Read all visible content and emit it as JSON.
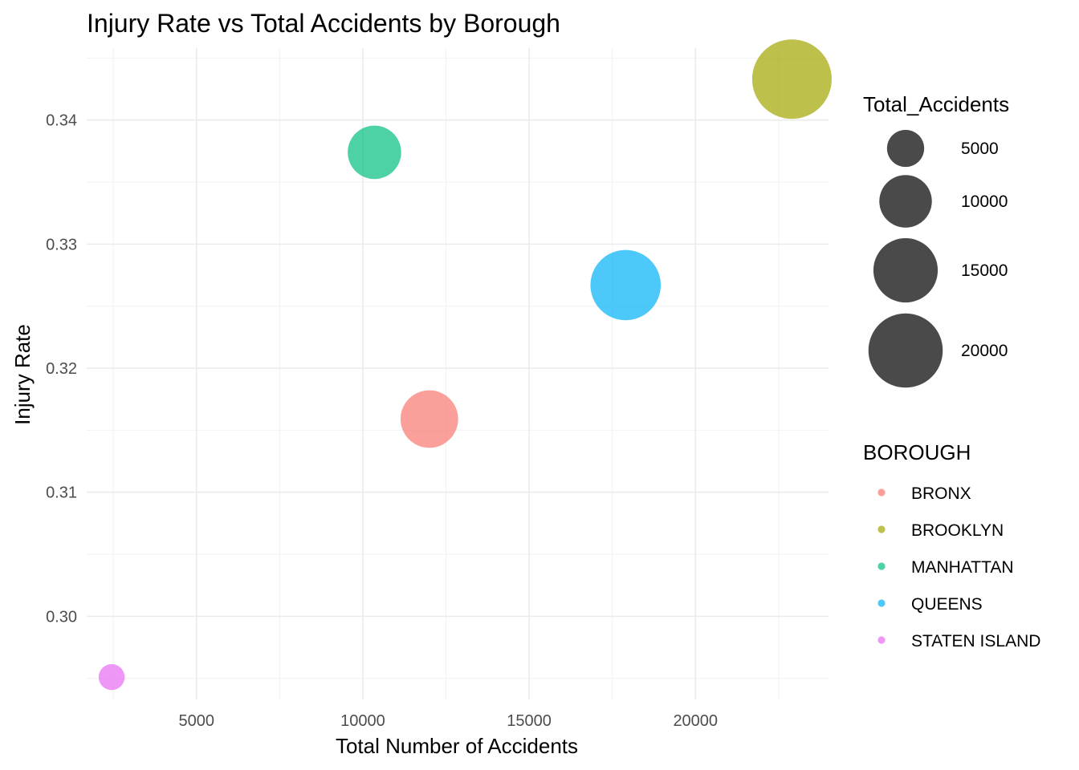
{
  "chart_data": {
    "type": "scatter",
    "title": "Injury Rate vs Total Accidents by Borough",
    "xlabel": "Total Number of Accidents",
    "ylabel": "Injury Rate",
    "xlim": [
      1700,
      24000
    ],
    "ylim": [
      0.2933,
      0.3458
    ],
    "x_ticks": [
      5000,
      10000,
      15000,
      20000
    ],
    "x_tick_labels": [
      "5000",
      "10000",
      "15000",
      "20000"
    ],
    "y_ticks": [
      0.3,
      0.31,
      0.32,
      0.33,
      0.34
    ],
    "y_tick_labels": [
      "0.30",
      "0.31",
      "0.32",
      "0.33",
      "0.34"
    ],
    "grid": true,
    "size_legend": {
      "title": "Total_Accidents",
      "breaks": [
        5000,
        10000,
        15000,
        20000
      ],
      "labels": [
        "5000",
        "10000",
        "15000",
        "20000"
      ],
      "color": "#4a4a4a"
    },
    "color_legend": {
      "title": "BOROUGH",
      "placement": "right"
    },
    "series": [
      {
        "name": "BRONX",
        "x": 12000,
        "y": 0.3159,
        "size": 12000,
        "color": "#F8766D"
      },
      {
        "name": "BROOKLYN",
        "x": 22900,
        "y": 0.3433,
        "size": 22900,
        "color": "#A3A500"
      },
      {
        "name": "MANHATTAN",
        "x": 10350,
        "y": 0.3374,
        "size": 10350,
        "color": "#00BF7D"
      },
      {
        "name": "QUEENS",
        "x": 17900,
        "y": 0.3267,
        "size": 17900,
        "color": "#00B0F6"
      },
      {
        "name": "STATEN ISLAND",
        "x": 2450,
        "y": 0.2951,
        "size": 2450,
        "color": "#E76BF3"
      }
    ],
    "point_alpha": 0.7
  }
}
